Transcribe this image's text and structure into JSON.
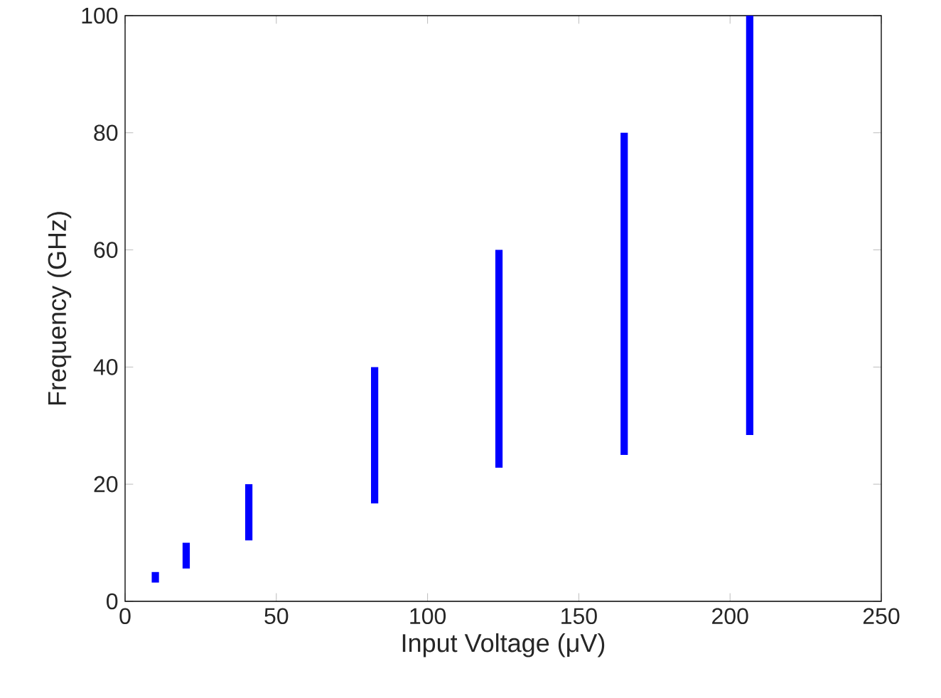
{
  "chart_data": {
    "type": "bar",
    "xlabel": "Input Voltage (μV)",
    "ylabel": "Frequency (GHz)",
    "x": [
      10,
      20.2,
      40.9,
      82.5,
      123.6,
      165,
      206.5
    ],
    "base": [
      3.2,
      5.6,
      10.4,
      16.7,
      22.8,
      25,
      28.4
    ],
    "values": [
      1.8,
      4.4,
      9.6,
      23.3,
      37.2,
      55,
      71.6
    ],
    "color": "#0000ff",
    "xlim": [
      0,
      250
    ],
    "ylim": [
      0,
      100
    ],
    "xticks": [
      0,
      50,
      100,
      150,
      200,
      250
    ],
    "yticks": [
      0,
      20,
      40,
      60,
      80,
      100
    ],
    "grid": false
  }
}
